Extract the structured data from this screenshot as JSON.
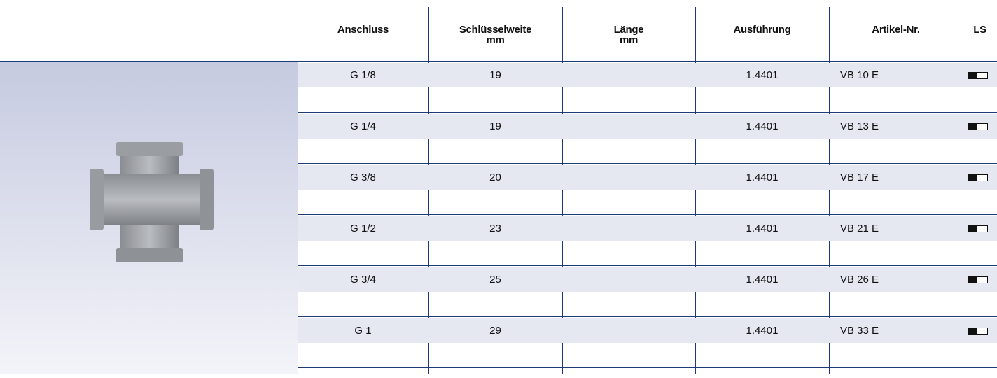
{
  "header": {
    "columns": [
      [
        "Anschluss"
      ],
      [
        "Schlüsselweite",
        "mm"
      ],
      [
        "Länge",
        "mm"
      ],
      [
        "Ausführung"
      ],
      [
        "Artikel-Nr."
      ],
      [
        "LS"
      ]
    ]
  },
  "table": {
    "rows": [
      {
        "anschluss": "G 1/8",
        "schluesselweite": "19",
        "ausfuehrung": "1.4401",
        "artikel": "VB 10 E"
      },
      {
        "anschluss": "G 1/4",
        "schluesselweite": "19",
        "ausfuehrung": "1.4401",
        "artikel": "VB 13 E"
      },
      {
        "anschluss": "G 3/8",
        "schluesselweite": "20",
        "ausfuehrung": "1.4401",
        "artikel": "VB 17 E"
      },
      {
        "anschluss": "G 1/2",
        "schluesselweite": "23",
        "ausfuehrung": "1.4401",
        "artikel": "VB 21 E"
      },
      {
        "anschluss": "G 3/4",
        "schluesselweite": "25",
        "ausfuehrung": "1.4401",
        "artikel": "VB 26 E"
      },
      {
        "anschluss": "G 1",
        "schluesselweite": "29",
        "ausfuehrung": "1.4401",
        "artikel": "VB 33 E"
      }
    ]
  }
}
